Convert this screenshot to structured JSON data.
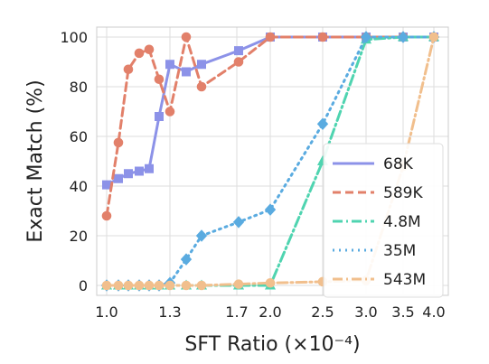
{
  "chart_data": {
    "type": "line",
    "xlabel": "SFT Ratio (×10⁻⁴)",
    "ylabel": "Exact Match (%)",
    "x_ticks": [
      "1.0",
      "1.3",
      "1.7",
      "2.0",
      "2.5",
      "3.0",
      "3.5",
      "4.0"
    ],
    "y_ticks": [
      "0",
      "20",
      "40",
      "60",
      "80",
      "100"
    ],
    "ylim": [
      -4,
      104
    ],
    "grid": true,
    "legend_position": "lower-right",
    "series": [
      {
        "name": "68K",
        "color": "#8c92e8",
        "dash": "solid",
        "marker": "square",
        "x": [
          1.0,
          1.05,
          1.1,
          1.15,
          1.2,
          1.25,
          1.3,
          1.35,
          1.4,
          1.45,
          2.0,
          2.5,
          3.0,
          3.5,
          4.0
        ],
        "y": [
          40.5,
          43,
          45,
          46,
          47,
          68,
          89,
          86,
          89,
          94.5,
          100,
          100,
          100,
          100,
          100
        ]
      },
      {
        "name": "589K",
        "color": "#e2806a",
        "dash": "dashed",
        "marker": "circle",
        "x": [
          1.0,
          1.05,
          1.1,
          1.15,
          1.2,
          1.25,
          1.3,
          1.35,
          1.4,
          1.45,
          2.0,
          2.5,
          3.0,
          3.5,
          4.0
        ],
        "y": [
          28,
          57.5,
          87,
          93.5,
          95,
          83,
          70,
          100,
          80,
          90,
          100,
          100,
          100,
          100,
          100
        ]
      },
      {
        "name": "4.8M",
        "color": "#4fd4b0",
        "dash": "dashdot",
        "marker": "triangle",
        "x": [
          1.0,
          1.05,
          1.1,
          1.15,
          1.2,
          1.25,
          1.3,
          1.35,
          1.4,
          1.45,
          2.0,
          2.5,
          3.0,
          3.5,
          4.0
        ],
        "y": [
          0,
          0,
          0,
          0,
          0,
          0,
          0,
          0,
          0,
          0,
          0,
          50,
          99,
          100,
          100
        ]
      },
      {
        "name": "35M",
        "color": "#5aabe0",
        "dash": "dotted",
        "marker": "diamond",
        "x": [
          1.0,
          1.05,
          1.1,
          1.15,
          1.2,
          1.25,
          1.3,
          1.35,
          1.4,
          1.45,
          2.0,
          2.5,
          3.0,
          3.5,
          4.0
        ],
        "y": [
          0,
          0,
          0,
          0,
          0,
          0,
          1,
          10.5,
          20,
          25.5,
          30.5,
          65,
          100,
          100,
          100
        ]
      },
      {
        "name": "543M",
        "color": "#f1bf8d",
        "dash": "dashdot",
        "marker": "circle",
        "x": [
          1.0,
          1.05,
          1.1,
          1.15,
          1.2,
          1.25,
          1.3,
          1.35,
          1.4,
          1.45,
          2.0,
          2.5,
          3.0,
          3.5,
          4.0
        ],
        "y": [
          0,
          0,
          0,
          0,
          0,
          0,
          0,
          0,
          0,
          0.5,
          1,
          1.5,
          2,
          48,
          100
        ]
      }
    ]
  }
}
